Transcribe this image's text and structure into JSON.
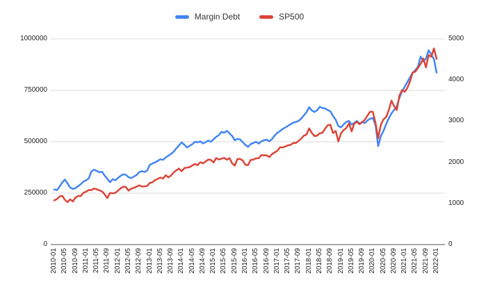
{
  "legend": {
    "items": [
      {
        "label": "Margin Debt",
        "color": "#4285f4"
      },
      {
        "label": "SP500",
        "color": "#db4437"
      }
    ]
  },
  "chart_data": {
    "type": "line",
    "legend_position": "top",
    "grid": "horizontal",
    "x_tick_every": 4,
    "x": [
      "2010-01",
      "2010-02",
      "2010-03",
      "2010-04",
      "2010-05",
      "2010-06",
      "2010-07",
      "2010-08",
      "2010-09",
      "2010-10",
      "2010-11",
      "2010-12",
      "2011-01",
      "2011-02",
      "2011-03",
      "2011-04",
      "2011-05",
      "2011-06",
      "2011-07",
      "2011-08",
      "2011-09",
      "2011-10",
      "2011-11",
      "2011-12",
      "2012-01",
      "2012-02",
      "2012-03",
      "2012-04",
      "2012-05",
      "2012-06",
      "2012-07",
      "2012-08",
      "2012-09",
      "2012-10",
      "2012-11",
      "2012-12",
      "2013-01",
      "2013-02",
      "2013-03",
      "2013-04",
      "2013-05",
      "2013-06",
      "2013-07",
      "2013-08",
      "2013-09",
      "2013-10",
      "2013-11",
      "2013-12",
      "2014-01",
      "2014-02",
      "2014-03",
      "2014-04",
      "2014-05",
      "2014-06",
      "2014-07",
      "2014-08",
      "2014-09",
      "2014-10",
      "2014-11",
      "2014-12",
      "2015-01",
      "2015-02",
      "2015-03",
      "2015-04",
      "2015-05",
      "2015-06",
      "2015-07",
      "2015-08",
      "2015-09",
      "2015-10",
      "2015-11",
      "2015-12",
      "2016-01",
      "2016-02",
      "2016-03",
      "2016-04",
      "2016-05",
      "2016-06",
      "2016-07",
      "2016-08",
      "2016-09",
      "2016-10",
      "2016-11",
      "2016-12",
      "2017-01",
      "2017-02",
      "2017-03",
      "2017-04",
      "2017-05",
      "2017-06",
      "2017-07",
      "2017-08",
      "2017-09",
      "2017-10",
      "2017-11",
      "2017-12",
      "2018-01",
      "2018-02",
      "2018-03",
      "2018-04",
      "2018-05",
      "2018-06",
      "2018-07",
      "2018-08",
      "2018-09",
      "2018-10",
      "2018-11",
      "2018-12",
      "2019-01",
      "2019-02",
      "2019-03",
      "2019-04",
      "2019-05",
      "2019-06",
      "2019-07",
      "2019-08",
      "2019-09",
      "2019-10",
      "2019-11",
      "2019-12",
      "2020-01",
      "2020-02",
      "2020-03",
      "2020-04",
      "2020-05",
      "2020-06",
      "2020-07",
      "2020-08",
      "2020-09",
      "2020-10",
      "2020-11",
      "2020-12",
      "2021-01",
      "2021-02",
      "2021-03",
      "2021-04",
      "2021-05",
      "2021-06",
      "2021-07",
      "2021-08",
      "2021-09",
      "2021-10",
      "2021-11",
      "2021-12",
      "2022-01"
    ],
    "left_axis": {
      "min": 0,
      "max": 1000000,
      "ticks": [
        0,
        250000,
        500000,
        750000,
        1000000
      ]
    },
    "right_axis": {
      "min": 0,
      "max": 5000,
      "ticks": [
        0,
        1000,
        2000,
        3000,
        4000,
        5000
      ]
    },
    "series": [
      {
        "name": "Margin Debt",
        "axis": "left",
        "color": "#4285f4",
        "values": [
          268000,
          265000,
          281000,
          302000,
          316000,
          298000,
          277000,
          271000,
          274000,
          284000,
          294000,
          306000,
          312000,
          322000,
          356000,
          364000,
          358000,
          352000,
          354000,
          335000,
          320000,
          303000,
          318000,
          313000,
          324000,
          334000,
          342000,
          339000,
          328000,
          323000,
          331000,
          338000,
          352000,
          357000,
          353000,
          360000,
          388000,
          394000,
          400000,
          407000,
          415000,
          412000,
          424000,
          432000,
          441000,
          452000,
          468000,
          482000,
          497000,
          485000,
          472000,
          480000,
          488000,
          500000,
          497000,
          502000,
          492000,
          498000,
          506000,
          500000,
          512000,
          524000,
          532000,
          548000,
          544000,
          553000,
          541000,
          528000,
          507000,
          514000,
          511000,
          498000,
          484000,
          475000,
          489000,
          494000,
          500000,
          491000,
          502000,
          507000,
          510000,
          502000,
          513000,
          530000,
          543000,
          552000,
          562000,
          569000,
          577000,
          585000,
          593000,
          596000,
          601000,
          612000,
          628000,
          643000,
          668000,
          652000,
          645000,
          653000,
          670000,
          664000,
          662000,
          654000,
          648000,
          625000,
          607000,
          576000,
          570000,
          584000,
          596000,
          601000,
          583000,
          592000,
          601000,
          588000,
          596000,
          591000,
          604000,
          612000,
          616000,
          580000,
          479000,
          527000,
          553000,
          585000,
          614000,
          638000,
          655000,
          672000,
          714000,
          745000,
          768000,
          791000,
          813000,
          836000,
          848000,
          866000,
          914000,
          891000,
          904000,
          945000,
          924000,
          902000,
          836000
        ]
      },
      {
        "name": "SP500",
        "axis": "right",
        "color": "#db4437",
        "values": [
          1073.87,
          1104.49,
          1169.43,
          1186.69,
          1089.41,
          1030.71,
          1101.6,
          1049.33,
          1141.2,
          1183.26,
          1180.55,
          1257.64,
          1286.12,
          1327.22,
          1325.83,
          1363.61,
          1345.2,
          1320.64,
          1292.28,
          1218.89,
          1131.42,
          1253.3,
          1246.96,
          1257.6,
          1312.41,
          1365.68,
          1408.47,
          1397.91,
          1310.33,
          1362.16,
          1379.32,
          1406.58,
          1440.67,
          1412.16,
          1416.18,
          1426.19,
          1498.11,
          1514.68,
          1569.19,
          1597.57,
          1630.74,
          1606.28,
          1685.73,
          1632.97,
          1681.55,
          1756.54,
          1805.81,
          1848.36,
          1782.59,
          1859.45,
          1872.34,
          1883.95,
          1923.57,
          1960.23,
          1930.67,
          2003.37,
          1972.29,
          2018.05,
          2067.56,
          2058.9,
          1994.99,
          2104.5,
          2067.89,
          2085.51,
          2107.39,
          2063.11,
          2103.84,
          1972.18,
          1920.03,
          2079.36,
          2080.41,
          2043.94,
          1940.24,
          1932.23,
          2059.74,
          2065.3,
          2096.95,
          2098.86,
          2173.6,
          2170.95,
          2168.27,
          2126.15,
          2198.81,
          2238.83,
          2278.87,
          2363.64,
          2362.72,
          2384.2,
          2411.8,
          2423.41,
          2470.3,
          2471.65,
          2519.36,
          2575.26,
          2647.58,
          2673.61,
          2823.81,
          2713.83,
          2640.87,
          2648.05,
          2705.27,
          2718.37,
          2816.29,
          2901.52,
          2913.98,
          2711.74,
          2760.17,
          2506.85,
          2704.1,
          2784.49,
          2834.4,
          2945.83,
          2752.06,
          2941.76,
          2980.38,
          2926.46,
          2976.74,
          3037.56,
          3140.98,
          3230.78,
          3225.52,
          2954.22,
          2584.59,
          2912.43,
          3044.31,
          3100.29,
          3271.12,
          3500.31,
          3363.0,
          3269.96,
          3621.63,
          3756.07,
          3714.24,
          3811.15,
          3972.89,
          4181.17,
          4204.11,
          4297.5,
          4395.26,
          4522.68,
          4307.54,
          4605.38,
          4567.0,
          4766.18,
          4515.55
        ]
      }
    ],
    "colors": {
      "grid": "#d9d9d9",
      "baseline": "#555555",
      "tick_text": "#222222"
    }
  }
}
